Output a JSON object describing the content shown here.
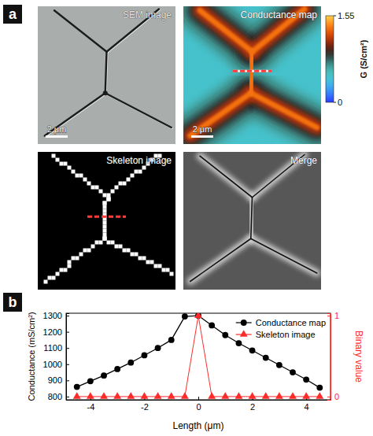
{
  "panel_labels": [
    "a",
    "b"
  ],
  "panel_a": {
    "images": [
      {
        "title": "SEM image",
        "scale_bar": "2 μm"
      },
      {
        "title": "Conductance map",
        "scale_bar": "2 μm"
      },
      {
        "title": "Skeleton image"
      },
      {
        "title": "Merge"
      }
    ],
    "colorbar": {
      "label": "G (S/cm²)",
      "range": [
        0,
        1.55
      ],
      "ticks": [
        0,
        1.55
      ]
    }
  },
  "chart_data": {
    "type": "line",
    "x_label": "Length (μm)",
    "y_label": "Conductance (mS/cm²)",
    "y2_label": "Binary value",
    "x": [
      -4.5,
      -4,
      -3.5,
      -3,
      -2.5,
      -2,
      -1.5,
      -1,
      -0.5,
      0,
      0.5,
      1,
      1.5,
      2,
      2.5,
      3,
      3.5,
      4,
      4.5
    ],
    "series": [
      {
        "name": "Conductance map",
        "color": "#000000",
        "marker": "circle",
        "line_style": "solid",
        "values": [
          860,
          895,
          930,
          970,
          1010,
          1055,
          1100,
          1150,
          1295,
          1300,
          1240,
          1180,
          1130,
          1085,
          1040,
          995,
          950,
          905,
          855
        ]
      },
      {
        "name": "Skeleton image",
        "color": "#ff2a2a",
        "marker": "triangle",
        "line_style": "solid",
        "axis": "y2",
        "values": [
          0,
          0,
          0,
          0,
          0,
          0,
          0,
          0,
          0,
          1,
          0,
          0,
          0,
          0,
          0,
          0,
          0,
          0,
          0
        ]
      }
    ],
    "xlim": [
      -4.9,
      4.9
    ],
    "xticks": [
      -4,
      -2,
      0,
      2,
      4
    ],
    "ylim": [
      780,
      1315
    ],
    "yticks": [
      800,
      900,
      1000,
      1100,
      1200,
      1300
    ],
    "y2lim": [
      -0.04,
      1.03
    ],
    "y2ticks": [
      0,
      1
    ],
    "legend": "upper right"
  }
}
